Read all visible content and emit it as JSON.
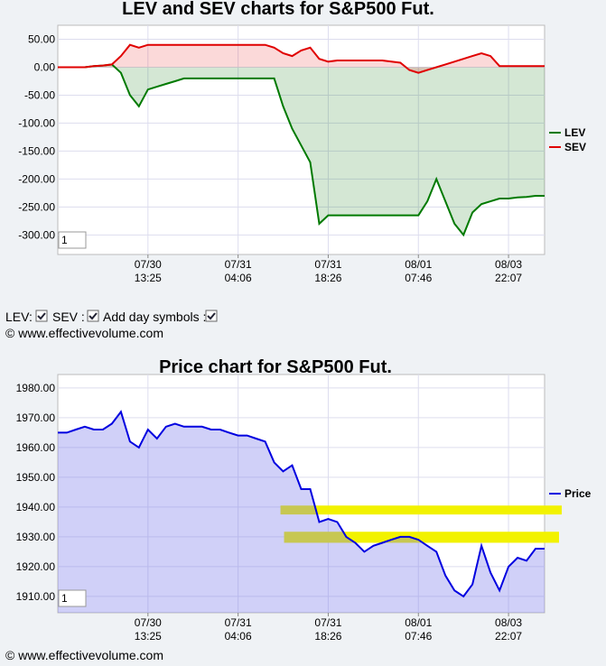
{
  "chart_data": [
    {
      "type": "line",
      "title": "LEV and SEV charts for S&P500 Fut.",
      "x": [
        0,
        1,
        2,
        3,
        4,
        5,
        6,
        7,
        8,
        9,
        10,
        11,
        12,
        13,
        14,
        15,
        16,
        17,
        18,
        19,
        20,
        21,
        22,
        23,
        24,
        25,
        26,
        27,
        28,
        29,
        30,
        31,
        32,
        33,
        34,
        35,
        36,
        37,
        38,
        39,
        40,
        41,
        42,
        43,
        44,
        45,
        46,
        47,
        48,
        49,
        50,
        51,
        52,
        53,
        54
      ],
      "xlim": [
        0,
        54
      ],
      "xticks": [
        {
          "value": 10,
          "label": "07/30 13:25"
        },
        {
          "value": 20,
          "label": "07/31 04:06"
        },
        {
          "value": 30,
          "label": "07/31 18:26"
        },
        {
          "value": 40,
          "label": "08/01 07:46"
        },
        {
          "value": 50,
          "label": "08/03 22:07"
        }
      ],
      "ylim": [
        -335,
        75
      ],
      "yticks": [
        {
          "value": 50,
          "label": "50.00"
        },
        {
          "value": 0,
          "label": "0.00"
        },
        {
          "value": -50,
          "label": "-50.00"
        },
        {
          "value": -100,
          "label": "-100.00"
        },
        {
          "value": -150,
          "label": "-150.00"
        },
        {
          "value": -200,
          "label": "-200.00"
        },
        {
          "value": -250,
          "label": "-250.00"
        },
        {
          "value": -300,
          "label": "-300.00"
        }
      ],
      "grid": true,
      "legend": "right",
      "series": [
        {
          "name": "LEV",
          "color": "#007a00",
          "fill": "rgba(0,110,0,0.17)",
          "values": [
            0,
            0,
            0,
            0,
            2,
            3,
            5,
            -10,
            -50,
            -70,
            -40,
            -35,
            -30,
            -25,
            -20,
            -20,
            -20,
            -20,
            -20,
            -20,
            -20,
            -20,
            -20,
            -20,
            -20,
            -70,
            -110,
            -140,
            -170,
            -280,
            -265,
            -265,
            -265,
            -265,
            -265,
            -265,
            -265,
            -265,
            -265,
            -265,
            -265,
            -240,
            -200,
            -240,
            -280,
            -300,
            -260,
            -245,
            -240,
            -235,
            -235,
            -233,
            -232,
            -230,
            -230
          ]
        },
        {
          "name": "SEV",
          "color": "#e00000",
          "fill": "rgba(230,0,0,0.15)",
          "values": [
            0,
            0,
            0,
            0,
            2,
            3,
            5,
            20,
            40,
            35,
            40,
            40,
            40,
            40,
            40,
            40,
            40,
            40,
            40,
            40,
            40,
            40,
            40,
            40,
            35,
            25,
            20,
            30,
            35,
            15,
            10,
            12,
            12,
            12,
            12,
            12,
            12,
            10,
            8,
            -5,
            -10,
            -5,
            0,
            5,
            10,
            15,
            20,
            25,
            20,
            2,
            2,
            2,
            2,
            2,
            2
          ]
        }
      ]
    },
    {
      "type": "line",
      "title": "Price chart for S&P500 Fut.",
      "x": [
        0,
        1,
        2,
        3,
        4,
        5,
        6,
        7,
        8,
        9,
        10,
        11,
        12,
        13,
        14,
        15,
        16,
        17,
        18,
        19,
        20,
        21,
        22,
        23,
        24,
        25,
        26,
        27,
        28,
        29,
        30,
        31,
        32,
        33,
        34,
        35,
        36,
        37,
        38,
        39,
        40,
        41,
        42,
        43,
        44,
        45,
        46,
        47,
        48,
        49,
        50,
        51,
        52,
        53,
        54
      ],
      "xlim": [
        0,
        54
      ],
      "xticks": [
        {
          "value": 10,
          "label": "07/30 13:25"
        },
        {
          "value": 20,
          "label": "07/31 04:06"
        },
        {
          "value": 30,
          "label": "07/31 18:26"
        },
        {
          "value": 40,
          "label": "08/01 07:46"
        },
        {
          "value": 50,
          "label": "08/03 22:07"
        }
      ],
      "ylim": [
        1904.5,
        1984.5
      ],
      "yticks": [
        {
          "value": 1910,
          "label": "1910.00"
        },
        {
          "value": 1920,
          "label": "1920.00"
        },
        {
          "value": 1930,
          "label": "1930.00"
        },
        {
          "value": 1940,
          "label": "1940.00"
        },
        {
          "value": 1950,
          "label": "1950.00"
        },
        {
          "value": 1960,
          "label": "1960.00"
        },
        {
          "value": 1970,
          "label": "1970.00"
        },
        {
          "value": 1980,
          "label": "1980.00"
        }
      ],
      "grid": true,
      "legend": "right",
      "bands": [
        {
          "y": [
            1937.5,
            1940.5
          ],
          "x": [
            24.7,
            55.9
          ],
          "color": "#f2f200"
        },
        {
          "y": [
            1928,
            1931.7
          ],
          "x": [
            25.1,
            55.6
          ],
          "color": "#f2f200"
        }
      ],
      "series": [
        {
          "name": "Price",
          "color": "#0000e0",
          "fill": "rgba(120,120,235,0.35)",
          "values": [
            1965,
            1965,
            1966,
            1967,
            1966,
            1966,
            1968,
            1972,
            1962,
            1960,
            1966,
            1963,
            1967,
            1968,
            1967,
            1967,
            1967,
            1966,
            1966,
            1965,
            1964,
            1964,
            1963,
            1962,
            1955,
            1952,
            1954,
            1946,
            1946,
            1935,
            1936,
            1935,
            1930,
            1928,
            1925,
            1927,
            1928,
            1929,
            1930,
            1930,
            1929,
            1927,
            1925,
            1917,
            1912,
            1910,
            1914,
            1927,
            1918,
            1912,
            1920,
            1923,
            1922,
            1926,
            1926
          ]
        }
      ]
    }
  ],
  "controls": {
    "lev_label": "LEV:",
    "sev_label": "SEV :",
    "day_label": "Add day symbols :",
    "zoom_top": "1",
    "zoom_bottom": "1"
  },
  "footer": {
    "top": "© www.effectivevolume.com",
    "bottom": "© www.effectivevolume.com"
  }
}
